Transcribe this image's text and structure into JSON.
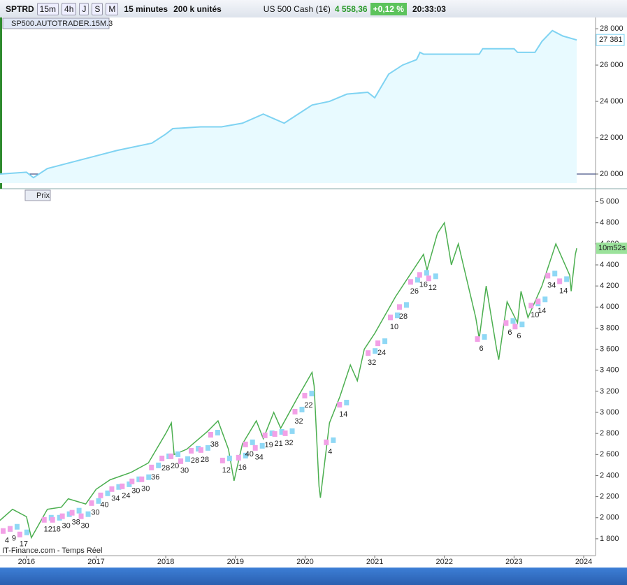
{
  "toolbar": {
    "symbol": "SPTRD",
    "periods": [
      "15m",
      "4h",
      "J",
      "S",
      "M"
    ],
    "timeframe": "15 minutes",
    "units": "200 k unités",
    "instrument": "US 500 Cash (1€)",
    "price": "4 558,36",
    "change": "+0,12 %",
    "time": "20:33:03"
  },
  "chart_data": [
    {
      "type": "area",
      "title": "SP500.AUTOTRADER.15M.3",
      "color": "#7fd3f2",
      "fill": "#e8faff",
      "xlim": [
        2015.62,
        2024.17
      ],
      "ylim": [
        19500,
        28620
      ],
      "yticks": [
        {
          "value": 28000,
          "label": "28 000"
        },
        {
          "value": 26000,
          "label": "26 000"
        },
        {
          "value": 24000,
          "label": "24 000"
        },
        {
          "value": 22000,
          "label": "22 000"
        },
        {
          "value": 20000,
          "label": "20 000"
        }
      ],
      "reference_line": 20000,
      "last_value": 27381,
      "last_value_label": "27 381",
      "x": [
        2015.62,
        2016.0,
        2016.1,
        2016.3,
        2016.8,
        2017.3,
        2017.8,
        2018.0,
        2018.1,
        2018.5,
        2018.8,
        2019.1,
        2019.4,
        2019.7,
        2019.9,
        2020.1,
        2020.35,
        2020.6,
        2020.9,
        2021.0,
        2021.2,
        2021.4,
        2021.6,
        2021.65,
        2021.7,
        2022.0,
        2022.5,
        2022.55,
        2023.0,
        2023.05,
        2023.3,
        2023.4,
        2023.55,
        2023.7,
        2023.9
      ],
      "series": [
        {
          "values": [
            20000,
            20100,
            19800,
            20300,
            20800,
            21300,
            21700,
            22200,
            22500,
            22600,
            22600,
            22800,
            23300,
            22800,
            23300,
            23800,
            24000,
            24400,
            24500,
            24200,
            25500,
            26000,
            26300,
            26700,
            26600,
            26600,
            26600,
            26900,
            26900,
            26700,
            26700,
            27300,
            27900,
            27600,
            27381
          ]
        }
      ]
    },
    {
      "type": "line",
      "color": "#4caf50",
      "buttons": [
        "Prix"
      ],
      "countdown": "10m52s",
      "watermark": "IT-Finance.com - Temps Réel",
      "xlim": [
        2015.62,
        2024.17
      ],
      "ylim": [
        1640,
        5110
      ],
      "xticks": [
        2016,
        2017,
        2018,
        2019,
        2020,
        2021,
        2022,
        2023,
        2024
      ],
      "yticks": [
        {
          "value": 5000,
          "label": "5 000"
        },
        {
          "value": 4800,
          "label": "4 800"
        },
        {
          "value": 4600,
          "label": "4 600"
        },
        {
          "value": 4400,
          "label": "4 400"
        },
        {
          "value": 4200,
          "label": "4 200"
        },
        {
          "value": 4000,
          "label": "4 000"
        },
        {
          "value": 3800,
          "label": "3 800"
        },
        {
          "value": 3600,
          "label": "3 600"
        },
        {
          "value": 3400,
          "label": "3 400"
        },
        {
          "value": 3200,
          "label": "3 200"
        },
        {
          "value": 3000,
          "label": "3 000"
        },
        {
          "value": 2800,
          "label": "2 800"
        },
        {
          "value": 2600,
          "label": "2 600"
        },
        {
          "value": 2400,
          "label": "2 400"
        },
        {
          "value": 2200,
          "label": "2 200"
        },
        {
          "value": 2000,
          "label": "2 000"
        },
        {
          "value": 1800,
          "label": "1 800"
        }
      ],
      "x": [
        2015.62,
        2015.8,
        2016.0,
        2016.07,
        2016.3,
        2016.5,
        2016.6,
        2016.85,
        2017.0,
        2017.2,
        2017.5,
        2017.75,
        2018.0,
        2018.08,
        2018.12,
        2018.3,
        2018.6,
        2018.75,
        2018.9,
        2018.98,
        2019.1,
        2019.3,
        2019.4,
        2019.55,
        2019.65,
        2019.9,
        2020.1,
        2020.13,
        2020.2,
        2020.22,
        2020.35,
        2020.5,
        2020.65,
        2020.75,
        2020.85,
        2021.0,
        2021.3,
        2021.5,
        2021.7,
        2021.75,
        2021.9,
        2022.0,
        2022.1,
        2022.2,
        2022.45,
        2022.5,
        2022.6,
        2022.75,
        2022.78,
        2022.9,
        2023.05,
        2023.1,
        2023.2,
        2023.4,
        2023.55,
        2023.6,
        2023.8,
        2023.82,
        2023.88,
        2023.9
      ],
      "series": [
        {
          "values": [
            1975,
            2080,
            2010,
            1810,
            2080,
            2100,
            2180,
            2130,
            2270,
            2360,
            2430,
            2520,
            2800,
            2900,
            2600,
            2650,
            2820,
            2920,
            2650,
            2350,
            2700,
            2920,
            2750,
            3000,
            2850,
            3150,
            3380,
            3250,
            2300,
            2190,
            2900,
            3150,
            3450,
            3300,
            3600,
            3750,
            4100,
            4300,
            4500,
            4350,
            4700,
            4800,
            4400,
            4600,
            3900,
            3700,
            4200,
            3600,
            3500,
            4050,
            3850,
            4150,
            3900,
            4200,
            4500,
            4600,
            4300,
            4150,
            4500,
            4558
          ]
        }
      ],
      "annotations": [
        {
          "text": "4",
          "x": 2015.72,
          "y": 1781
        },
        {
          "text": "9",
          "x": 2015.82,
          "y": 1801
        },
        {
          "text": "17",
          "x": 2015.96,
          "y": 1748
        },
        {
          "text": "12",
          "x": 2016.31,
          "y": 1887
        },
        {
          "text": "18",
          "x": 2016.43,
          "y": 1887
        },
        {
          "text": "30",
          "x": 2016.57,
          "y": 1921
        },
        {
          "text": "38",
          "x": 2016.71,
          "y": 1954
        },
        {
          "text": "30",
          "x": 2016.84,
          "y": 1921
        },
        {
          "text": "30",
          "x": 2016.99,
          "y": 2046
        },
        {
          "text": "40",
          "x": 2017.12,
          "y": 2119
        },
        {
          "text": "34",
          "x": 2017.28,
          "y": 2179
        },
        {
          "text": "24",
          "x": 2017.43,
          "y": 2205
        },
        {
          "text": "30",
          "x": 2017.57,
          "y": 2252
        },
        {
          "text": "30",
          "x": 2017.71,
          "y": 2272
        },
        {
          "text": "36",
          "x": 2017.85,
          "y": 2384
        },
        {
          "text": "28",
          "x": 2018.0,
          "y": 2470
        },
        {
          "text": "20",
          "x": 2018.13,
          "y": 2490
        },
        {
          "text": "30",
          "x": 2018.27,
          "y": 2444
        },
        {
          "text": "28",
          "x": 2018.42,
          "y": 2543
        },
        {
          "text": "28",
          "x": 2018.56,
          "y": 2550
        },
        {
          "text": "38",
          "x": 2018.7,
          "y": 2695
        },
        {
          "text": "12",
          "x": 2018.87,
          "y": 2450
        },
        {
          "text": "16",
          "x": 2019.1,
          "y": 2477
        },
        {
          "text": "40",
          "x": 2019.2,
          "y": 2603
        },
        {
          "text": "34",
          "x": 2019.34,
          "y": 2570
        },
        {
          "text": "19",
          "x": 2019.48,
          "y": 2689
        },
        {
          "text": "21",
          "x": 2019.62,
          "y": 2702
        },
        {
          "text": "32",
          "x": 2019.77,
          "y": 2709
        },
        {
          "text": "32",
          "x": 2019.91,
          "y": 2914
        },
        {
          "text": "22",
          "x": 2020.05,
          "y": 3066
        },
        {
          "text": "4",
          "x": 2020.36,
          "y": 2623
        },
        {
          "text": "14",
          "x": 2020.55,
          "y": 2980
        },
        {
          "text": "32",
          "x": 2020.96,
          "y": 3470
        },
        {
          "text": "24",
          "x": 2021.1,
          "y": 3563
        },
        {
          "text": "10",
          "x": 2021.28,
          "y": 3808
        },
        {
          "text": "28",
          "x": 2021.41,
          "y": 3907
        },
        {
          "text": "26",
          "x": 2021.57,
          "y": 4146
        },
        {
          "text": "16",
          "x": 2021.7,
          "y": 4212
        },
        {
          "text": "12",
          "x": 2021.83,
          "y": 4179
        },
        {
          "text": "6",
          "x": 2022.53,
          "y": 3603
        },
        {
          "text": "6",
          "x": 2022.94,
          "y": 3755
        },
        {
          "text": "6",
          "x": 2023.07,
          "y": 3722
        },
        {
          "text": "10",
          "x": 2023.3,
          "y": 3921
        },
        {
          "text": "14",
          "x": 2023.4,
          "y": 3960
        },
        {
          "text": "34",
          "x": 2023.54,
          "y": 4205
        },
        {
          "text": "14",
          "x": 2023.71,
          "y": 4152
        }
      ]
    }
  ]
}
